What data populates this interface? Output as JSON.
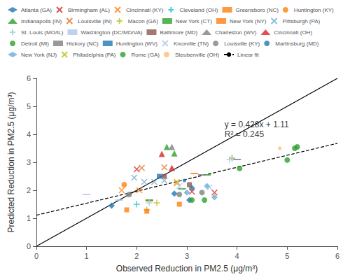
{
  "chart_data": {
    "type": "scatter",
    "xlabel": "Observed Reduction in PM2.5 (μg/m³)",
    "ylabel": "Predicted Reduction in PM2.5 (μg/m³)",
    "xlim": [
      0,
      6
    ],
    "ylim": [
      0,
      6
    ],
    "xticks": [
      0,
      1,
      2,
      3,
      4,
      5,
      6
    ],
    "yticks": [
      0,
      1,
      2,
      3,
      4,
      5,
      6
    ],
    "grid": false,
    "legend": "upper left",
    "annotations": [
      {
        "text": "y = 0.428x + 1.11",
        "x": 3.75,
        "y": 4.35
      },
      {
        "text": "R² = 0.245",
        "x": 3.75,
        "y": 4.0
      }
    ],
    "series": [
      {
        "name": "Atlanta (GA)",
        "type": "scatter",
        "marker": "diamond",
        "color": "#1f77b4",
        "x": [
          1.5,
          2.75,
          3.05,
          3.1
        ],
        "values": [
          1.45,
          1.88,
          1.65,
          2.08
        ]
      },
      {
        "name": "Birmingham (AL)",
        "type": "scatter",
        "marker": "x",
        "color": "#d62728",
        "x": [
          2.0,
          3.1,
          3.55
        ],
        "values": [
          2.75,
          1.95,
          1.92
        ]
      },
      {
        "name": "Cincinnati (KY)",
        "type": "scatter",
        "marker": "x",
        "color": "#ff7f0e",
        "x": [
          1.7,
          2.05,
          2.8
        ],
        "values": [
          2.0,
          2.0,
          2.25
        ]
      },
      {
        "name": "Cleveland (OH)",
        "type": "scatter",
        "marker": "plus",
        "color": "#17becf",
        "x": [
          2.0,
          3.9
        ],
        "values": [
          1.5,
          3.15
        ]
      },
      {
        "name": "Greensboro (NC)",
        "type": "scatter",
        "marker": "hline",
        "color": "#ff7f0e",
        "x": [
          2.25,
          3.15
        ],
        "values": [
          1.62,
          2.6
        ]
      },
      {
        "name": "Huntington (KY)",
        "type": "scatter",
        "marker": "circle",
        "color": "#ff7f0e",
        "x": [
          1.75
        ],
        "values": [
          2.2
        ]
      },
      {
        "name": "Indianapolis (IN)",
        "type": "scatter",
        "marker": "triangle",
        "color": "#2ca02c",
        "x": [
          2.6,
          2.75
        ],
        "values": [
          3.55,
          3.32
        ]
      },
      {
        "name": "Louisville (IN)",
        "type": "scatter",
        "marker": "x",
        "color": "#e07020",
        "x": [
          2.1,
          2.55
        ],
        "values": [
          2.8,
          2.82
        ]
      },
      {
        "name": "Macon (GA)",
        "type": "scatter",
        "marker": "plus",
        "color": "#bcbd22",
        "x": [
          2.2,
          2.4
        ],
        "values": [
          1.3,
          1.55
        ]
      },
      {
        "name": "New York (CT)",
        "type": "scatter",
        "marker": "hline",
        "color": "#2ca02c",
        "x": [
          2.25,
          2.9,
          3.4
        ],
        "values": [
          1.65,
          2.05,
          2.55
        ]
      },
      {
        "name": "New York (NY)",
        "type": "scatter",
        "marker": "square",
        "color": "#ff7f0e",
        "x": [
          1.8,
          2.2,
          2.85
        ],
        "values": [
          1.3,
          1.25,
          1.5
        ]
      },
      {
        "name": "Pittsburgh (PA)",
        "type": "scatter",
        "marker": "x",
        "color": "#6baed6",
        "x": [
          1.95,
          2.15,
          2.35,
          2.55
        ],
        "values": [
          2.45,
          2.3,
          2.3,
          2.35
        ]
      },
      {
        "name": "St. Louis (MO/IL)",
        "type": "scatter",
        "marker": "plus",
        "color": "#9ecae1",
        "x": [
          2.25,
          3.85
        ],
        "values": [
          1.55,
          3.1
        ]
      },
      {
        "name": "Washington (DC/MD/VA)",
        "type": "scatter",
        "marker": "hline",
        "color": "#aec7e8",
        "x": [
          1.0,
          1.65
        ],
        "values": [
          1.85,
          1.65
        ]
      },
      {
        "name": "Baltimore (MD)",
        "type": "scatter",
        "marker": "square",
        "color": "#8c564b",
        "x": [
          2.55,
          3.05
        ],
        "values": [
          2.5,
          2.2
        ]
      },
      {
        "name": "Charleston (WV)",
        "type": "scatter",
        "marker": "triangle",
        "color": "#7f7f7f",
        "x": [
          2.7
        ],
        "values": [
          3.55
        ]
      },
      {
        "name": "Cincinnati (OH)",
        "type": "scatter",
        "marker": "triangle",
        "color": "#d62728",
        "x": [
          2.5,
          2.7
        ],
        "values": [
          3.3,
          2.8
        ]
      },
      {
        "name": "Detroit (MI)",
        "type": "scatter",
        "marker": "circle",
        "color": "#2ca02c",
        "x": [
          3.35,
          4.05,
          5.0,
          5.15,
          5.2
        ],
        "values": [
          1.65,
          2.78,
          3.08,
          3.5,
          3.55
        ]
      },
      {
        "name": "Hickory (NC)",
        "type": "scatter",
        "marker": "hline",
        "color": "#7f7f7f",
        "x": [
          3.3,
          4.0
        ],
        "values": [
          2.55,
          3.1
        ]
      },
      {
        "name": "Huntington (WV)",
        "type": "scatter",
        "marker": "square",
        "color": "#1f77b4",
        "x": [
          2.45
        ],
        "values": [
          2.5
        ]
      },
      {
        "name": "Knoxville (TN)",
        "type": "scatter",
        "marker": "x",
        "color": "#aec7e8",
        "x": [
          2.85,
          3.45
        ],
        "values": [
          2.15,
          2.1
        ]
      },
      {
        "name": "Louisville (KY)",
        "type": "scatter",
        "marker": "circle",
        "color": "#7f7f7f",
        "x": [
          1.85,
          2.85,
          3.3
        ],
        "values": [
          1.85,
          1.85,
          1.92
        ]
      },
      {
        "name": "Martinsburg (MD)",
        "type": "scatter",
        "marker": "point",
        "color": "#1f77b4",
        "x": [
          2.95
        ],
        "values": [
          2.35
        ]
      },
      {
        "name": "New York (NJ)",
        "type": "scatter",
        "marker": "diamond",
        "color": "#6baed6",
        "x": [
          3.0,
          3.4,
          3.55
        ],
        "values": [
          1.92,
          2.15,
          1.75
        ]
      },
      {
        "name": "Philadelphia (PA)",
        "type": "scatter",
        "marker": "x",
        "color": "#bcbd22",
        "x": [
          2.8
        ],
        "values": [
          2.3
        ]
      },
      {
        "name": "Rome (GA)",
        "type": "scatter",
        "marker": "circle",
        "color": "#2ca02c",
        "x": [
          3.1
        ],
        "values": [
          1.65
        ]
      },
      {
        "name": "Steubenville (OH)",
        "type": "scatter",
        "marker": "point",
        "color": "#ffbb78",
        "x": [
          3.9,
          4.85
        ],
        "values": [
          3.15,
          3.5
        ]
      },
      {
        "name": "Linear fit",
        "type": "line",
        "line_style": "dashed",
        "color": "#000000",
        "x": [
          0,
          6
        ],
        "values": [
          1.11,
          3.678
        ]
      },
      {
        "type": "line",
        "line_style": "solid",
        "color": "#000000",
        "x": [
          0,
          6
        ],
        "values": [
          0,
          6
        ]
      }
    ]
  }
}
